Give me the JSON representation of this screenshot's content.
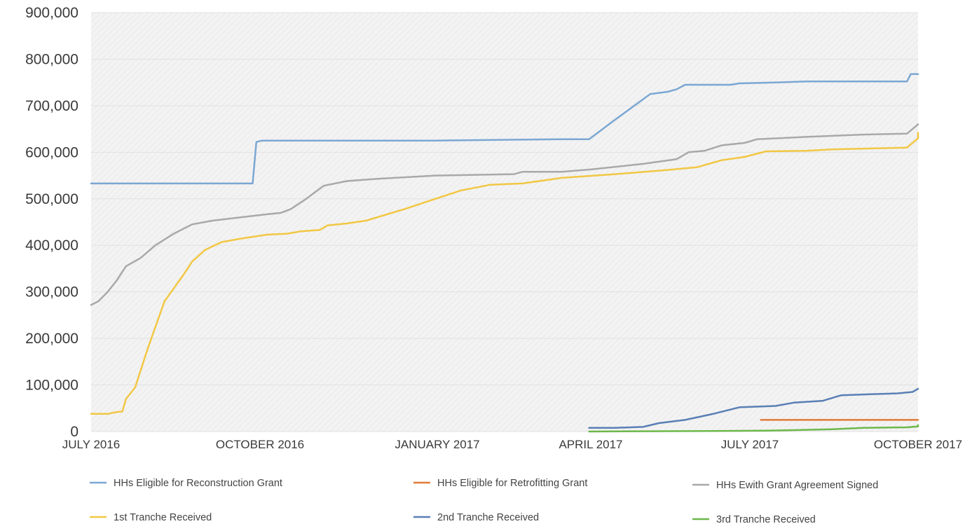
{
  "chart_data": {
    "type": "line",
    "title": "",
    "xlabel": "",
    "ylabel": "",
    "ylim": [
      0,
      900000
    ],
    "yticks": [
      0,
      100000,
      200000,
      300000,
      400000,
      500000,
      600000,
      700000,
      800000,
      900000
    ],
    "ytick_labels": [
      "0",
      "100,000",
      "200,000",
      "300,000",
      "400,000",
      "500,000",
      "600,000",
      "700,000",
      "800,000",
      "900,000"
    ],
    "xlim": [
      "2016-07-01",
      "2017-10-01"
    ],
    "xticks": [
      "2016-07-01",
      "2016-10-01",
      "2017-01-01",
      "2017-04-01",
      "2017-07-01",
      "2017-10-01"
    ],
    "xtick_labels": [
      "JULY 2016",
      "OCTOBER 2016",
      "JANUARY 2017",
      "APRIL 2017",
      "JULY 2017",
      "OCTOBER 2017"
    ],
    "grid": true,
    "legend_position": "bottom",
    "series": [
      {
        "name": "HHs Eligible for Reconstruction Grant",
        "color": "#7ba7d3",
        "points": [
          [
            "2016-07-01",
            533000
          ],
          [
            "2016-09-27",
            533000
          ],
          [
            "2016-09-29",
            622000
          ],
          [
            "2016-10-02",
            625000
          ],
          [
            "2016-12-31",
            625000
          ],
          [
            "2017-03-15",
            628000
          ],
          [
            "2017-03-31",
            628000
          ],
          [
            "2017-04-15",
            670000
          ],
          [
            "2017-05-05",
            725000
          ],
          [
            "2017-05-15",
            730000
          ],
          [
            "2017-05-20",
            735000
          ],
          [
            "2017-05-25",
            745000
          ],
          [
            "2017-06-20",
            745000
          ],
          [
            "2017-06-25",
            748000
          ],
          [
            "2017-07-15",
            750000
          ],
          [
            "2017-08-01",
            752000
          ],
          [
            "2017-09-25",
            752000
          ],
          [
            "2017-09-27",
            768000
          ],
          [
            "2017-10-11",
            768000
          ]
        ]
      },
      {
        "name": "HHs Eligible for Retrofitting Grant",
        "color": "#e07b39",
        "points": [
          [
            "2017-07-07",
            25000
          ],
          [
            "2017-10-11",
            25000
          ]
        ]
      },
      {
        "name": "HHs Ewith Grant Agreement Signed",
        "color": "#a9a9a9",
        "points": [
          [
            "2016-07-01",
            272000
          ],
          [
            "2016-07-05",
            280000
          ],
          [
            "2016-07-10",
            300000
          ],
          [
            "2016-07-15",
            325000
          ],
          [
            "2016-07-20",
            355000
          ],
          [
            "2016-07-28",
            373000
          ],
          [
            "2016-08-05",
            400000
          ],
          [
            "2016-08-15",
            425000
          ],
          [
            "2016-08-25",
            445000
          ],
          [
            "2016-09-05",
            453000
          ],
          [
            "2016-09-20",
            460000
          ],
          [
            "2016-10-05",
            467000
          ],
          [
            "2016-10-12",
            470000
          ],
          [
            "2016-10-17",
            478000
          ],
          [
            "2016-10-25",
            500000
          ],
          [
            "2016-11-03",
            528000
          ],
          [
            "2016-11-15",
            538000
          ],
          [
            "2016-12-01",
            543000
          ],
          [
            "2016-12-31",
            550000
          ],
          [
            "2017-02-15",
            553000
          ],
          [
            "2017-02-20",
            558000
          ],
          [
            "2017-03-15",
            558000
          ],
          [
            "2017-04-01",
            563000
          ],
          [
            "2017-05-01",
            575000
          ],
          [
            "2017-05-20",
            585000
          ],
          [
            "2017-05-27",
            600000
          ],
          [
            "2017-06-05",
            603000
          ],
          [
            "2017-06-15",
            615000
          ],
          [
            "2017-06-28",
            620000
          ],
          [
            "2017-07-05",
            628000
          ],
          [
            "2017-08-01",
            633000
          ],
          [
            "2017-09-01",
            638000
          ],
          [
            "2017-09-25",
            640000
          ],
          [
            "2017-10-11",
            660000
          ]
        ]
      },
      {
        "name": "1st Tranche Received",
        "color": "#f2c744",
        "points": [
          [
            "2016-07-01",
            38000
          ],
          [
            "2016-07-10",
            38000
          ],
          [
            "2016-07-15",
            42000
          ],
          [
            "2016-07-18",
            43000
          ],
          [
            "2016-07-20",
            70000
          ],
          [
            "2016-07-25",
            95000
          ],
          [
            "2016-08-01",
            180000
          ],
          [
            "2016-08-10",
            280000
          ],
          [
            "2016-08-20",
            335000
          ],
          [
            "2016-08-25",
            365000
          ],
          [
            "2016-09-01",
            390000
          ],
          [
            "2016-09-10",
            407000
          ],
          [
            "2016-09-20",
            414000
          ],
          [
            "2016-10-05",
            423000
          ],
          [
            "2016-10-15",
            425000
          ],
          [
            "2016-10-22",
            430000
          ],
          [
            "2016-11-01",
            433000
          ],
          [
            "2016-11-05",
            443000
          ],
          [
            "2016-11-15",
            447000
          ],
          [
            "2016-11-25",
            453000
          ],
          [
            "2016-12-15",
            478000
          ],
          [
            "2016-12-31",
            500000
          ],
          [
            "2017-01-15",
            518000
          ],
          [
            "2017-02-01",
            530000
          ],
          [
            "2017-02-20",
            533000
          ],
          [
            "2017-03-15",
            545000
          ],
          [
            "2017-04-15",
            553000
          ],
          [
            "2017-05-15",
            562000
          ],
          [
            "2017-06-01",
            568000
          ],
          [
            "2017-06-15",
            583000
          ],
          [
            "2017-06-28",
            590000
          ],
          [
            "2017-07-10",
            602000
          ],
          [
            "2017-08-01",
            603000
          ],
          [
            "2017-08-15",
            606000
          ],
          [
            "2017-09-25",
            610000
          ],
          [
            "2017-10-05",
            630000
          ],
          [
            "2017-10-11",
            642000
          ]
        ]
      },
      {
        "name": "2nd Tranche Received",
        "color": "#5a7fb5",
        "points": [
          [
            "2017-03-31",
            8000
          ],
          [
            "2017-04-15",
            8000
          ],
          [
            "2017-05-01",
            10000
          ],
          [
            "2017-05-10",
            18000
          ],
          [
            "2017-05-25",
            25000
          ],
          [
            "2017-06-10",
            38000
          ],
          [
            "2017-06-25",
            52000
          ],
          [
            "2017-07-15",
            55000
          ],
          [
            "2017-07-25",
            62000
          ],
          [
            "2017-08-10",
            66000
          ],
          [
            "2017-08-20",
            78000
          ],
          [
            "2017-09-05",
            80000
          ],
          [
            "2017-09-20",
            82000
          ],
          [
            "2017-09-28",
            85000
          ],
          [
            "2017-10-11",
            92000
          ]
        ]
      },
      {
        "name": "3rd Tranche Received",
        "color": "#6db84a",
        "points": [
          [
            "2017-03-31",
            0
          ],
          [
            "2017-06-10",
            1000
          ],
          [
            "2017-07-10",
            2000
          ],
          [
            "2017-07-25",
            3000
          ],
          [
            "2017-08-15",
            5000
          ],
          [
            "2017-09-01",
            8000
          ],
          [
            "2017-09-25",
            9000
          ],
          [
            "2017-10-01",
            11000
          ],
          [
            "2017-10-11",
            14000
          ]
        ]
      }
    ]
  }
}
